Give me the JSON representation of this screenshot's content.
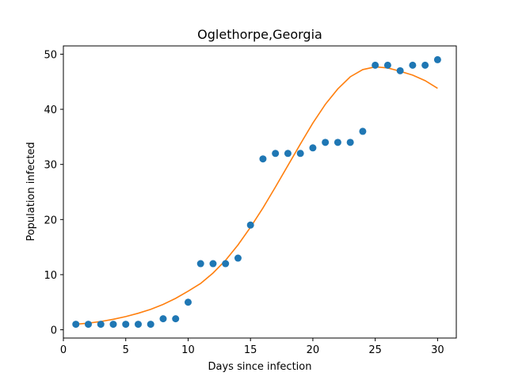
{
  "chart_data": {
    "type": "scatter",
    "title": "Oglethorpe,Georgia",
    "xlabel": "Days since infection",
    "ylabel": "Population infected",
    "xlim": [
      0,
      31.5
    ],
    "ylim": [
      -1.5,
      51.5
    ],
    "xticks": [
      0,
      5,
      10,
      15,
      20,
      25,
      30
    ],
    "yticks": [
      0,
      10,
      20,
      30,
      40,
      50
    ],
    "grid": false,
    "series": [
      {
        "type": "scatter",
        "color": "#1f77b4",
        "x": [
          1,
          2,
          3,
          4,
          5,
          6,
          7,
          8,
          9,
          10,
          11,
          12,
          13,
          14,
          15,
          16,
          17,
          18,
          19,
          20,
          21,
          22,
          23,
          24,
          25,
          26,
          27,
          28,
          29,
          30
        ],
        "y": [
          1,
          1,
          1,
          1,
          1,
          1,
          1,
          2,
          2,
          5,
          12,
          12,
          12,
          13,
          19,
          31,
          32,
          32,
          32,
          33,
          34,
          34,
          34,
          36,
          48,
          48,
          47,
          48,
          48,
          49
        ]
      },
      {
        "type": "line",
        "color": "#ff7f0e",
        "x": [
          1,
          2,
          3,
          4,
          5,
          6,
          7,
          8,
          9,
          10,
          11,
          12,
          13,
          14,
          15,
          16,
          17,
          18,
          19,
          20,
          21,
          22,
          23,
          24,
          25,
          26,
          27,
          28,
          29,
          30
        ],
        "y": [
          1.0,
          1.2,
          1.5,
          1.9,
          2.4,
          3.0,
          3.7,
          4.6,
          5.7,
          7.0,
          8.4,
          10.3,
          12.6,
          15.4,
          18.6,
          22.1,
          25.9,
          29.8,
          33.7,
          37.5,
          40.9,
          43.7,
          45.9,
          47.2,
          47.7,
          47.5,
          46.9,
          46.2,
          45.2,
          43.8
        ]
      }
    ]
  }
}
